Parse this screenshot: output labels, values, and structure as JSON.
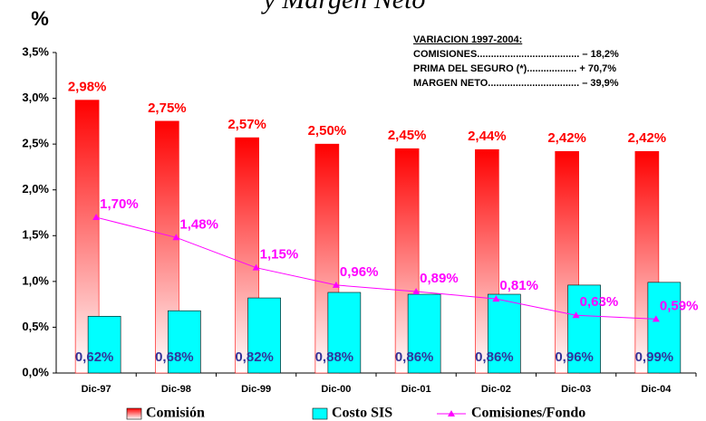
{
  "chart_data": {
    "type": "bar",
    "title": "y Margen Neto",
    "y_label": "%",
    "categories": [
      "Dic-97",
      "Dic-98",
      "Dic-99",
      "Dic-00",
      "Dic-01",
      "Dic-02",
      "Dic-03",
      "Dic-04"
    ],
    "series": [
      {
        "name": "Comisión",
        "type": "bar",
        "color": "#ff0000",
        "values": [
          2.98,
          2.75,
          2.57,
          2.5,
          2.45,
          2.44,
          2.42,
          2.42
        ],
        "value_labels": [
          "2,98%",
          "2,75%",
          "2,57%",
          "2,50%",
          "2,45%",
          "2,44%",
          "2,42%",
          "2,42%"
        ],
        "label_color": "#ff0000"
      },
      {
        "name": "Costo SIS",
        "type": "bar",
        "color": "#00ffff",
        "values": [
          0.62,
          0.68,
          0.82,
          0.88,
          0.86,
          0.86,
          0.96,
          0.99
        ],
        "value_labels": [
          "0,62%",
          "0,68%",
          "0,82%",
          "0,88%",
          "0,86%",
          "0,86%",
          "0,96%",
          "0,99%"
        ],
        "label_color": "#333399"
      },
      {
        "name": "Comisiones/Fondo",
        "type": "line",
        "color": "#ff00ff",
        "values": [
          1.7,
          1.48,
          1.15,
          0.96,
          0.89,
          0.81,
          0.63,
          0.59
        ],
        "value_labels": [
          "1,70%",
          "1,48%",
          "1,15%",
          "0,96%",
          "0,89%",
          "0,81%",
          "0,63%",
          "0,59%"
        ],
        "label_color": "#ff00ff"
      }
    ],
    "ylim": [
      0,
      3.5
    ],
    "yticks": [
      {
        "value": 0,
        "label": "0,0%"
      },
      {
        "value": 0.5,
        "label": "0,5%"
      },
      {
        "value": 1,
        "label": "1,0%"
      },
      {
        "value": 1.5,
        "label": "1,5%"
      },
      {
        "value": 2,
        "label": "2,0%"
      },
      {
        "value": 2.5,
        "label": "2,5%"
      },
      {
        "value": 3,
        "label": "3,0%"
      },
      {
        "value": 3.5,
        "label": "3,5%"
      }
    ],
    "annotation": {
      "title": "VARIACION 1997-2004:",
      "lines": [
        "COMISIONES..................................... – 18,2%",
        "PRIMA DEL SEGURO (*).................. + 70,7%",
        "MARGEN NETO................................. – 39,9%"
      ]
    }
  }
}
